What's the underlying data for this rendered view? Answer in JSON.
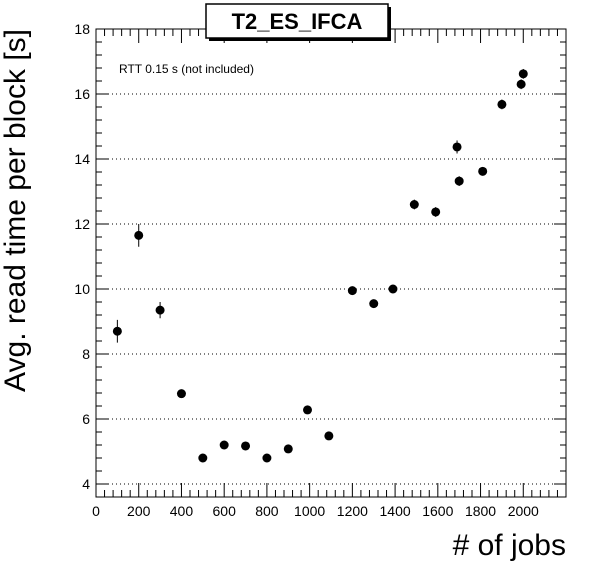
{
  "chart_data": {
    "type": "scatter",
    "title": "T2_ES_IFCA",
    "xlabel": "# of jobs",
    "ylabel": "Avg. read time per block [s]",
    "annotation": "RTT 0.15 s (not included)",
    "xlim": [
      0,
      2200
    ],
    "ylim": [
      3.6,
      18
    ],
    "x_ticks": [
      0,
      200,
      400,
      600,
      800,
      1000,
      1200,
      1400,
      1600,
      1800,
      2000
    ],
    "y_ticks": [
      4,
      6,
      8,
      10,
      12,
      14,
      16,
      18
    ],
    "grid": "horizontal dotted",
    "marker_color": "#000000",
    "points": [
      {
        "x": 100,
        "y": 8.7,
        "yerr": 0.35
      },
      {
        "x": 200,
        "y": 11.65,
        "yerr": 0.35
      },
      {
        "x": 300,
        "y": 9.35,
        "yerr": 0.25
      },
      {
        "x": 400,
        "y": 6.78,
        "yerr": 0.1
      },
      {
        "x": 500,
        "y": 4.8,
        "yerr": 0.1
      },
      {
        "x": 600,
        "y": 5.2,
        "yerr": 0.1
      },
      {
        "x": 700,
        "y": 5.17,
        "yerr": 0.1
      },
      {
        "x": 800,
        "y": 4.8,
        "yerr": 0.1
      },
      {
        "x": 900,
        "y": 5.08,
        "yerr": 0.1
      },
      {
        "x": 990,
        "y": 6.28,
        "yerr": 0.1
      },
      {
        "x": 1090,
        "y": 5.48,
        "yerr": 0.1
      },
      {
        "x": 1200,
        "y": 9.95,
        "yerr": 0.1
      },
      {
        "x": 1300,
        "y": 9.55,
        "yerr": 0.1
      },
      {
        "x": 1390,
        "y": 10.0,
        "yerr": 0.1
      },
      {
        "x": 1490,
        "y": 12.6,
        "yerr": 0.15
      },
      {
        "x": 1590,
        "y": 12.37,
        "yerr": 0.15
      },
      {
        "x": 1690,
        "y": 14.37,
        "yerr": 0.2
      },
      {
        "x": 1700,
        "y": 13.32,
        "yerr": 0.15
      },
      {
        "x": 1810,
        "y": 13.62,
        "yerr": 0.1
      },
      {
        "x": 1900,
        "y": 15.68,
        "yerr": 0.15
      },
      {
        "x": 1990,
        "y": 16.3,
        "yerr": 0.15
      },
      {
        "x": 2000,
        "y": 16.62,
        "yerr": 0.15
      }
    ]
  }
}
